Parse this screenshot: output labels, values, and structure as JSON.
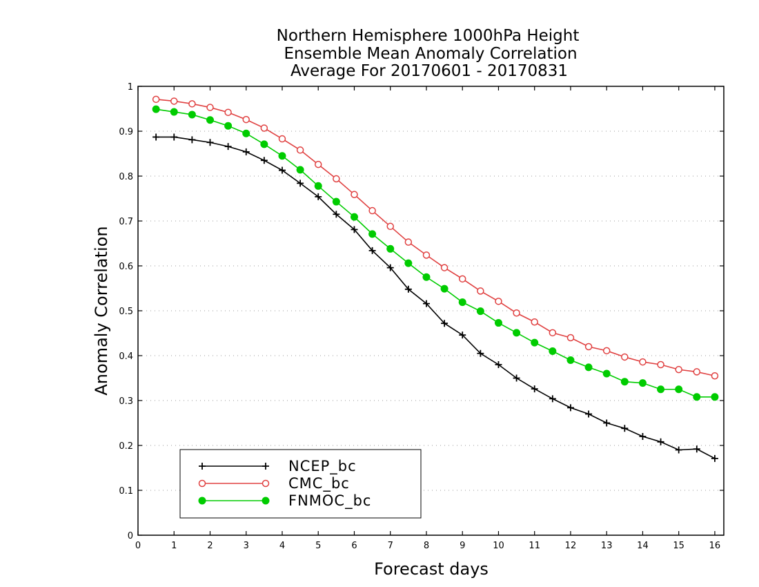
{
  "chart_data": {
    "type": "line",
    "title_lines": [
      "Northern Hemisphere 1000hPa Height",
      "Ensemble Mean Anomaly Correlation",
      "Average For 20170601 - 20170831"
    ],
    "xlabel": "Forecast days",
    "ylabel": "Anomaly Correlation",
    "xlim": [
      0,
      16.25
    ],
    "ylim": [
      0,
      1
    ],
    "xticks": [
      "0",
      "1",
      "2",
      "3",
      "4",
      "5",
      "6",
      "7",
      "8",
      "9",
      "10",
      "11",
      "12",
      "13",
      "14",
      "15",
      "16"
    ],
    "yticks": [
      "0",
      "0.1",
      "0.2",
      "0.3",
      "0.4",
      "0.5",
      "0.6",
      "0.7",
      "0.8",
      "0.9",
      "1"
    ],
    "grid": "horizontal dotted",
    "legend_position": "bottom-left",
    "x": [
      0.5,
      1,
      1.5,
      2,
      2.5,
      3,
      3.5,
      4,
      4.5,
      5,
      5.5,
      6,
      6.5,
      7,
      7.5,
      8,
      8.5,
      9,
      9.5,
      10,
      10.5,
      11,
      11.5,
      12,
      12.5,
      13,
      13.5,
      14,
      14.5,
      15,
      15.5,
      16
    ],
    "series": [
      {
        "name": "NCEP_bc",
        "color": "#000000",
        "marker": "plus",
        "values": [
          0.887,
          0.887,
          0.881,
          0.875,
          0.866,
          0.854,
          0.835,
          0.813,
          0.784,
          0.754,
          0.715,
          0.681,
          0.634,
          0.596,
          0.548,
          0.516,
          0.472,
          0.446,
          0.405,
          0.38,
          0.35,
          0.326,
          0.304,
          0.284,
          0.27,
          0.25,
          0.238,
          0.22,
          0.208,
          0.19,
          0.192,
          0.171
        ]
      },
      {
        "name": "CMC_bc",
        "color": "#e04040",
        "marker": "open-circle",
        "values": [
          0.971,
          0.967,
          0.961,
          0.953,
          0.942,
          0.926,
          0.907,
          0.883,
          0.858,
          0.826,
          0.794,
          0.759,
          0.723,
          0.688,
          0.653,
          0.624,
          0.596,
          0.571,
          0.544,
          0.521,
          0.495,
          0.475,
          0.451,
          0.44,
          0.42,
          0.411,
          0.397,
          0.386,
          0.38,
          0.369,
          0.364,
          0.355
        ]
      },
      {
        "name": "FNMOC_bc",
        "color": "#00cc00",
        "marker": "filled-circle",
        "values": [
          0.949,
          0.943,
          0.937,
          0.925,
          0.912,
          0.895,
          0.871,
          0.845,
          0.814,
          0.778,
          0.743,
          0.709,
          0.671,
          0.638,
          0.606,
          0.575,
          0.549,
          0.519,
          0.499,
          0.473,
          0.451,
          0.429,
          0.41,
          0.39,
          0.374,
          0.36,
          0.342,
          0.339,
          0.325,
          0.325,
          0.308,
          0.308
        ]
      }
    ]
  }
}
